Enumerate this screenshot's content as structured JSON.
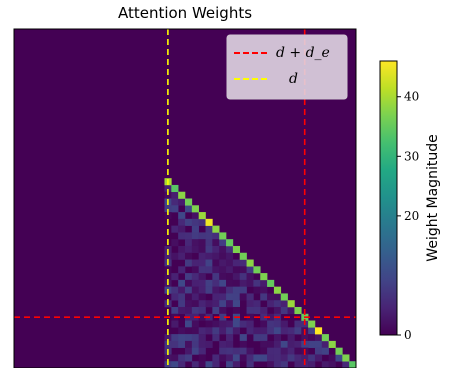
{
  "chart_data": {
    "type": "heatmap",
    "title": "Attention Weights",
    "matrix_size": 50,
    "colormap": "viridis",
    "background_value": 0,
    "diagonal": {
      "start": 22,
      "end": 49,
      "values": [
        40,
        34,
        38,
        36,
        37,
        39,
        45,
        38,
        36,
        35,
        37,
        36,
        38,
        36,
        37,
        35,
        38,
        36,
        39,
        37,
        35,
        37,
        46,
        36,
        38,
        36,
        37,
        34
      ]
    },
    "noise_region": {
      "rows": [
        23,
        49
      ],
      "cols": [
        22,
        49
      ],
      "max_value": 10
    },
    "reference_lines": [
      {
        "name": "d + d_e",
        "legend_label": "d + d_e",
        "orientation": "both",
        "index": 42,
        "color": "#ff0000",
        "style": "dashed"
      },
      {
        "name": "d",
        "legend_label": "d",
        "orientation": "vertical",
        "index": 22,
        "color": "#ffff00",
        "style": "dashed"
      }
    ],
    "colorbar": {
      "label": "Weight Magnitude",
      "range": [
        0,
        46
      ],
      "ticks": [
        0,
        20,
        30,
        40
      ],
      "tick_labels": [
        "0",
        "20",
        "30",
        "40"
      ]
    },
    "legend_placement": "top-right",
    "grid": false
  }
}
